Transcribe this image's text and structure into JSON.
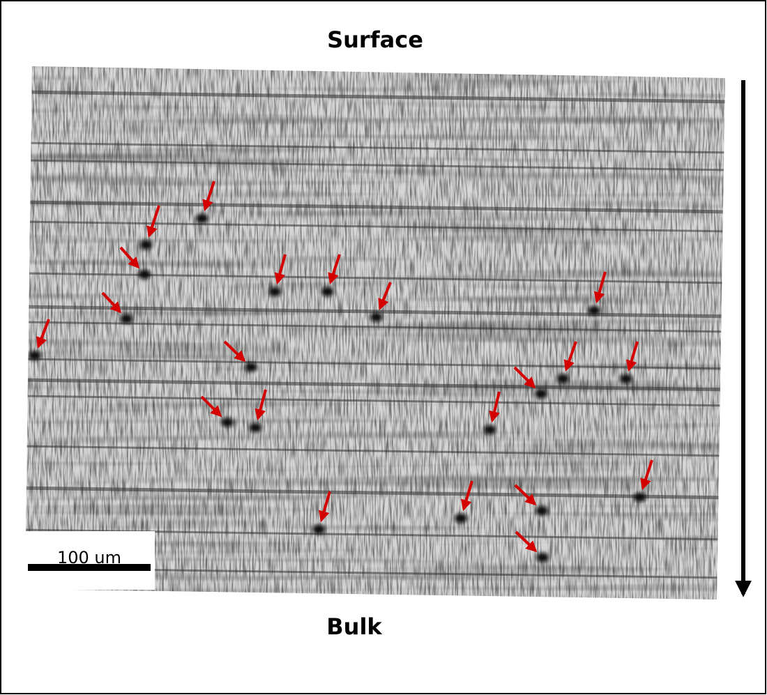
{
  "labels": {
    "top": "Surface",
    "bottom": "Bulk"
  },
  "scale_bar": {
    "label": "100 um"
  }
}
